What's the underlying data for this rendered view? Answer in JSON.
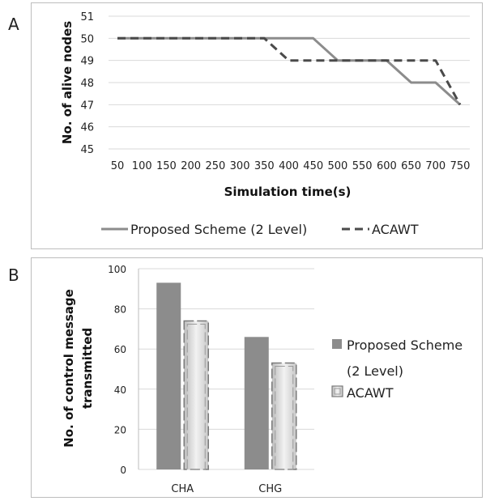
{
  "panels": {
    "a_label": "A",
    "b_label": "B"
  },
  "chart_data": [
    {
      "type": "line",
      "xlabel": "Simulation time(s)",
      "ylabel": "No. of alive nodes",
      "x": [
        50,
        100,
        150,
        200,
        250,
        300,
        350,
        400,
        450,
        500,
        550,
        600,
        650,
        700,
        750
      ],
      "ylim": [
        45,
        51
      ],
      "yticks": [
        45,
        46,
        47,
        48,
        49,
        50,
        51
      ],
      "grid": true,
      "legend_position": "bottom",
      "series": [
        {
          "name": "Proposed Scheme (2 Level)",
          "color": "#8c8c8c",
          "style": "solid",
          "points": [
            [
              50,
              50
            ],
            [
              450,
              50
            ],
            [
              500,
              49
            ],
            [
              600,
              49
            ],
            [
              650,
              48
            ],
            [
              700,
              48
            ],
            [
              750,
              47
            ]
          ]
        },
        {
          "name": "ACAWT",
          "color": "#4a4a4a",
          "style": "dashed",
          "points": [
            [
              50,
              50
            ],
            [
              350,
              50
            ],
            [
              400,
              49
            ],
            [
              700,
              49
            ],
            [
              750,
              47
            ]
          ]
        }
      ]
    },
    {
      "type": "bar",
      "ylabel": "No. of control message transmitted",
      "ylabel_lines": [
        "No. of control message",
        "transmitted"
      ],
      "categories": [
        "CHA",
        "CHG"
      ],
      "ylim": [
        0,
        100
      ],
      "yticks": [
        0,
        20,
        40,
        60,
        80,
        100
      ],
      "grid": true,
      "legend_position": "right",
      "series": [
        {
          "name": "Proposed Scheme (2 Level)",
          "name_lines": [
            "Proposed Scheme",
            "(2 Level)"
          ],
          "color": "#8c8c8c",
          "values": [
            93,
            66
          ]
        },
        {
          "name": "ACAWT",
          "name_lines": [
            "ACAWT"
          ],
          "color": "#d9d9d9",
          "values": [
            74,
            53
          ]
        }
      ]
    }
  ]
}
